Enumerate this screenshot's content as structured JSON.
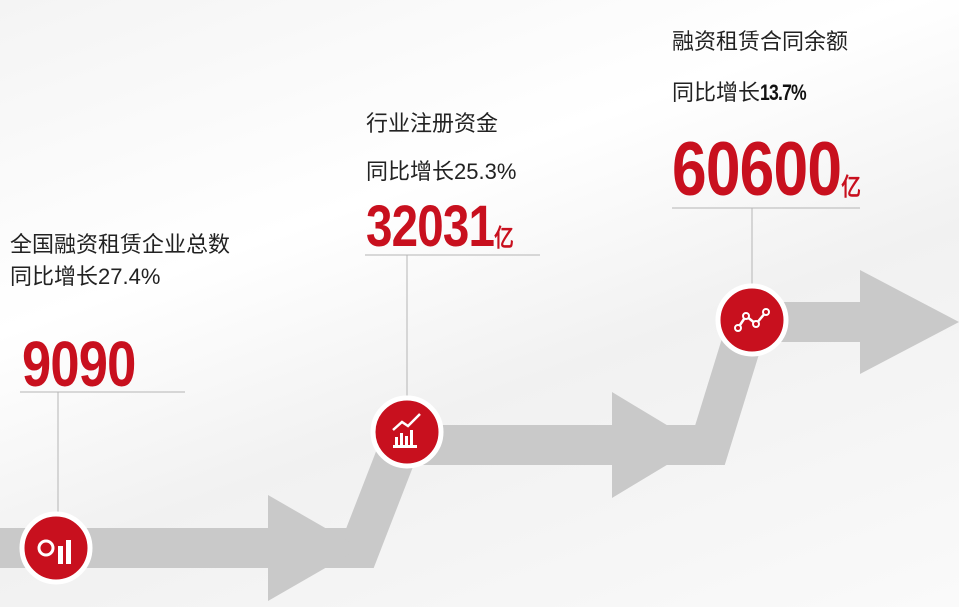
{
  "items": [
    {
      "title": "全国融资租赁企业总数",
      "growth_label": "同比增长",
      "growth_rate": "27.4%",
      "value": "9090"
    },
    {
      "title": "行业注册资金",
      "growth_label": "同比增长",
      "growth_rate": "25.3%",
      "value": "32031",
      "unit": "亿"
    },
    {
      "title": "融资租赁合同余额",
      "growth_label": "同比增长",
      "growth_rate": "13.7%",
      "value": "60600",
      "unit": "亿"
    }
  ]
}
